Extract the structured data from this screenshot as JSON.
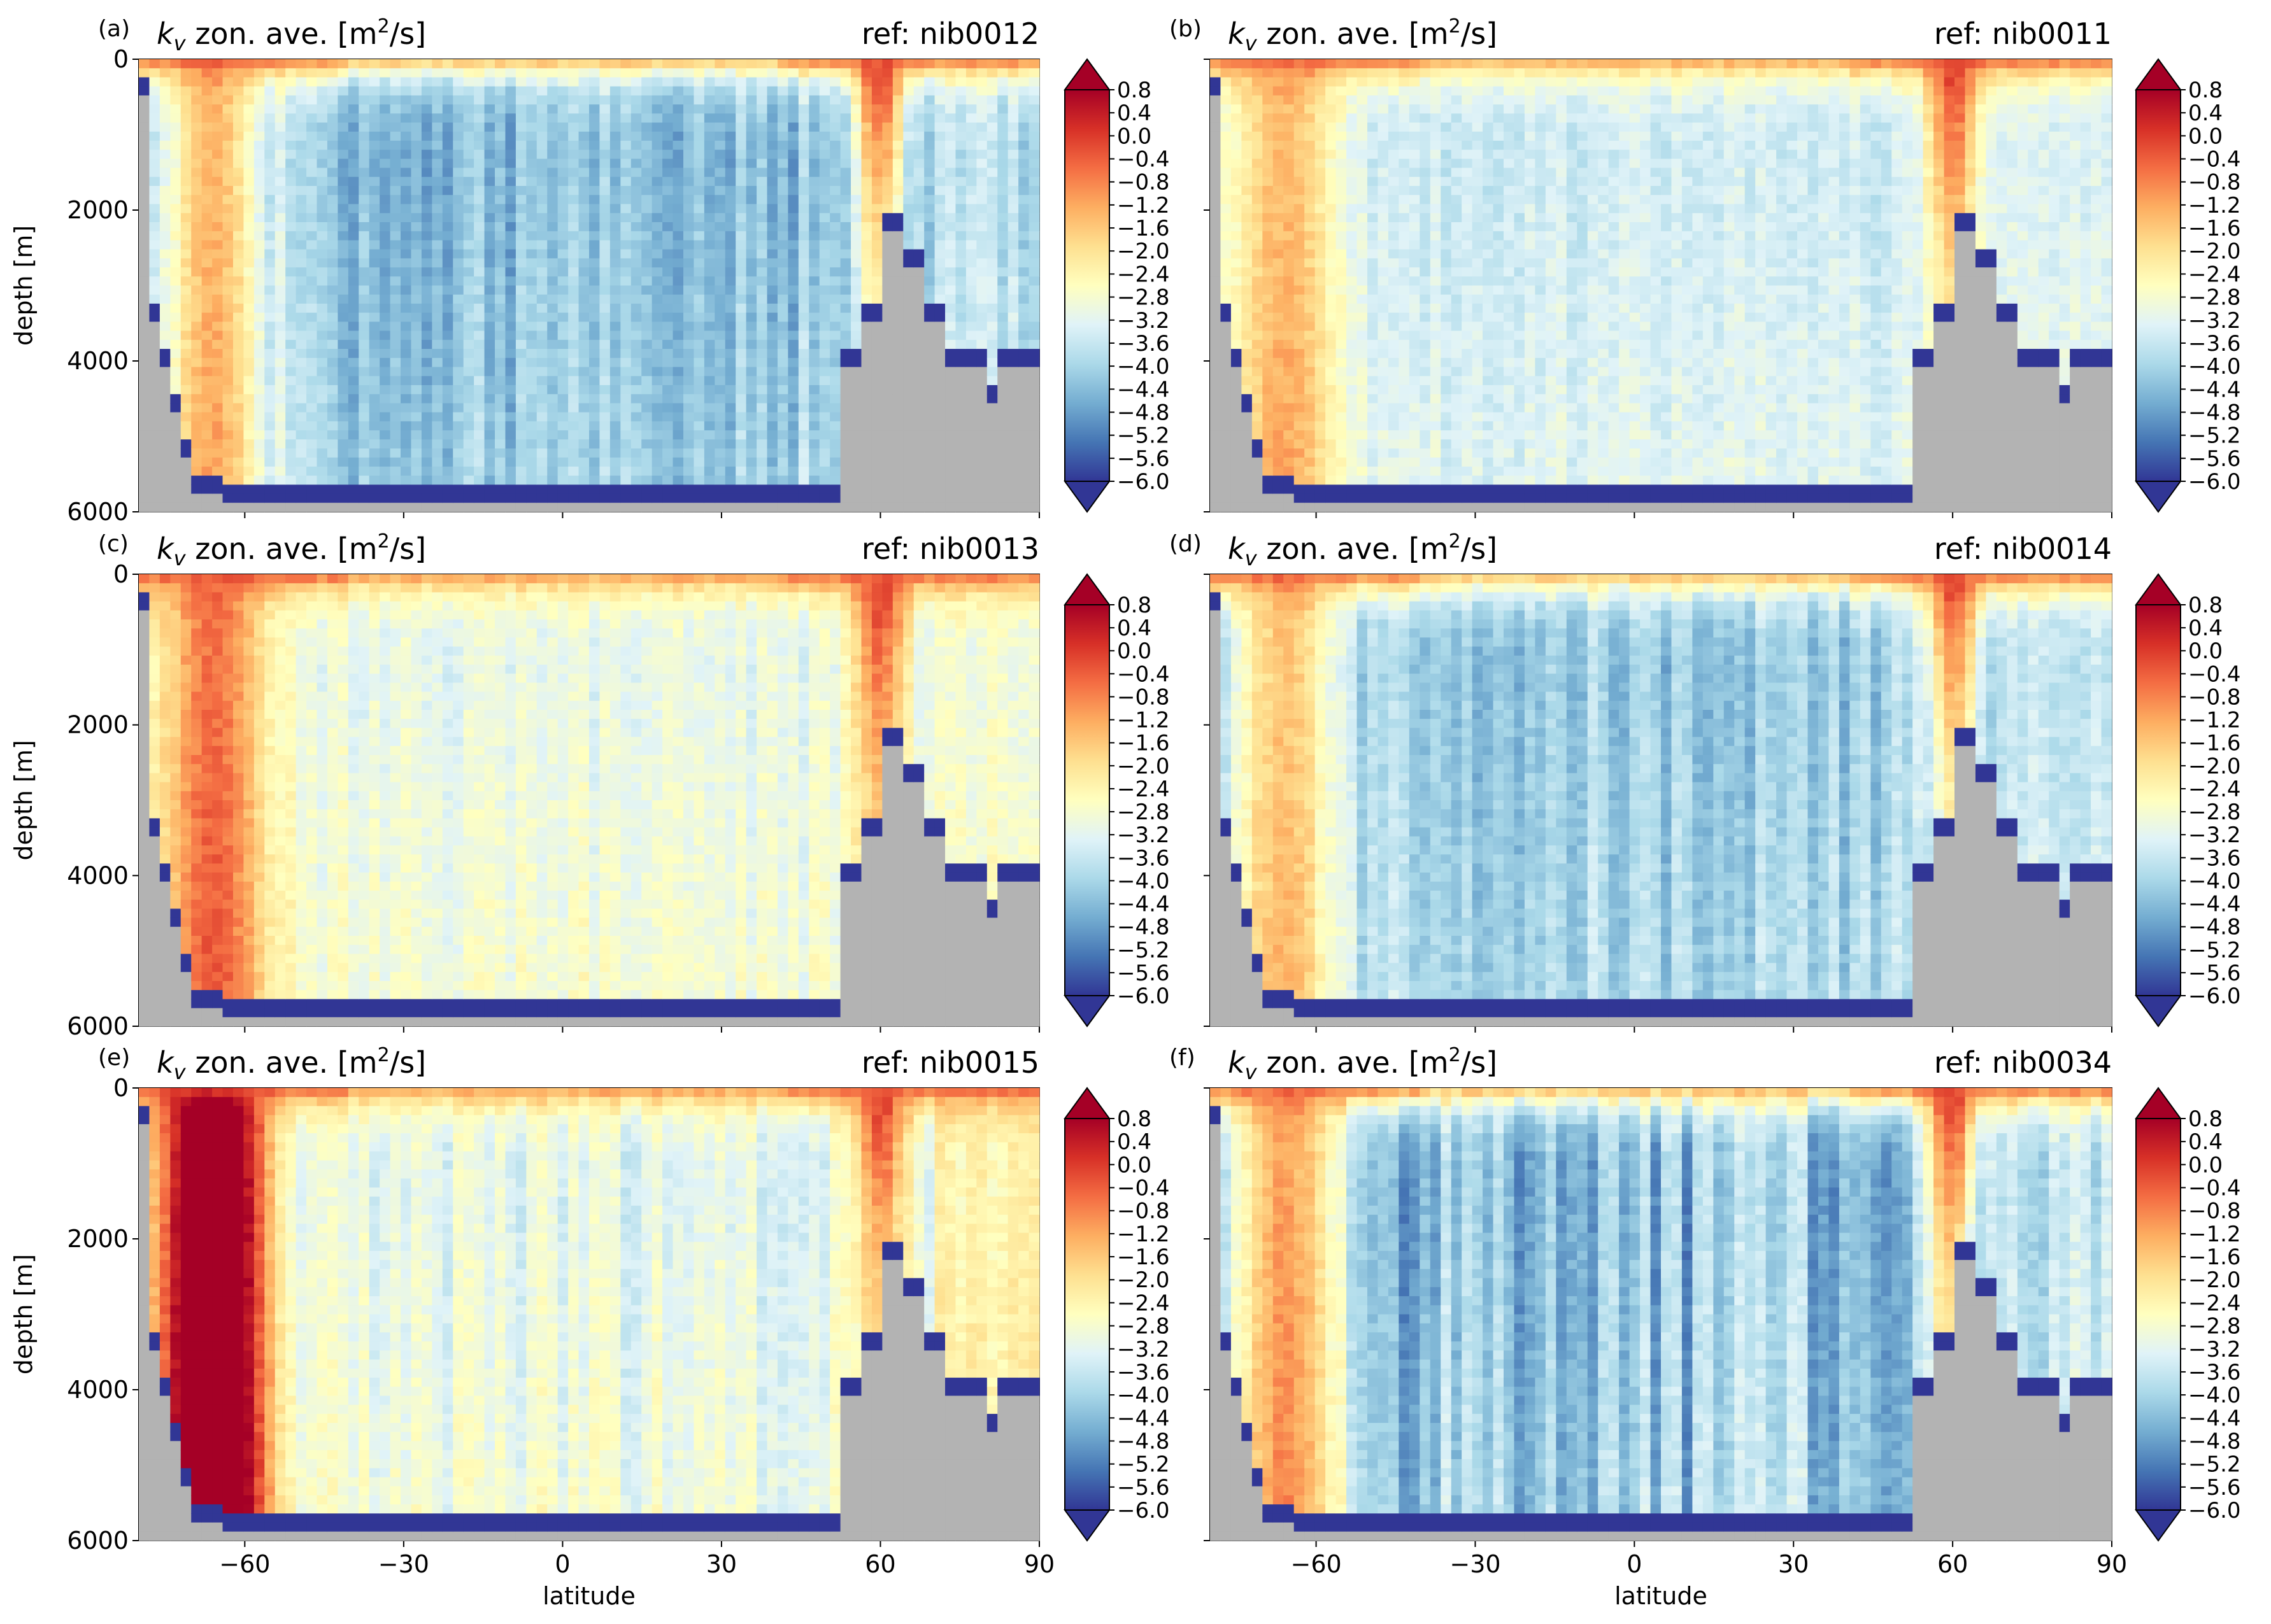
{
  "figure": {
    "x_axis_label": "latitude",
    "y_axis_label": "depth [m]"
  },
  "chart_data": [
    {
      "panel": "(a)",
      "title_var": "k",
      "title_sub": "v",
      "title_text": " zon. ave. [m",
      "title_sup": "2",
      "title_end": "/s]",
      "ref": "ref: nib0012"
    },
    {
      "panel": "(b)",
      "title_var": "k",
      "title_sub": "v",
      "title_text": " zon. ave. [m",
      "title_sup": "2",
      "title_end": "/s]",
      "ref": "ref: nib0011"
    },
    {
      "panel": "(c)",
      "title_var": "k",
      "title_sub": "v",
      "title_text": " zon. ave. [m",
      "title_sup": "2",
      "title_end": "/s]",
      "ref": "ref: nib0013"
    },
    {
      "panel": "(d)",
      "title_var": "k",
      "title_sub": "v",
      "title_text": " zon. ave. [m",
      "title_sup": "2",
      "title_end": "/s]",
      "ref": "ref: nib0014"
    },
    {
      "panel": "(e)",
      "title_var": "k",
      "title_sub": "v",
      "title_text": " zon. ave. [m",
      "title_sup": "2",
      "title_end": "/s]",
      "ref": "ref: nib0015"
    },
    {
      "panel": "(f)",
      "title_var": "k",
      "title_sub": "v",
      "title_text": " zon. ave. [m",
      "title_sup": "2",
      "title_end": "/s]",
      "ref": "ref: nib0034"
    }
  ],
  "shared": {
    "type": "heatmap",
    "xlim": [
      -80,
      90
    ],
    "ylim": [
      6000,
      0
    ],
    "x_ticks": [
      -60,
      -30,
      0,
      30,
      60,
      90
    ],
    "x_tick_labels": [
      "−60",
      "−30",
      "0",
      "30",
      "60",
      "90"
    ],
    "y_ticks": [
      0,
      2000,
      4000,
      6000
    ],
    "y_tick_labels": [
      "0",
      "2000",
      "4000",
      "6000"
    ],
    "colorbar": {
      "min": -6.0,
      "max": 0.8,
      "extend": "both",
      "tick_values": [
        0.8,
        0.4,
        0.0,
        -0.4,
        -0.8,
        -1.2,
        -1.6,
        -2.0,
        -2.4,
        -2.8,
        -3.2,
        -3.6,
        -4.0,
        -4.4,
        -4.8,
        -5.2,
        -5.6,
        -6.0
      ],
      "tick_labels": [
        "0.8",
        "0.4",
        "0.0",
        "−0.4",
        "−0.8",
        "−1.2",
        "−1.6",
        "−2.0",
        "−2.4",
        "−2.8",
        "−3.2",
        "−3.6",
        "−4.0",
        "−4.4",
        "−4.8",
        "−5.2",
        "−5.6",
        "−6.0"
      ],
      "colormap": [
        "#313695",
        "#4575b4",
        "#74add1",
        "#abd9e9",
        "#e0f3f8",
        "#ffffbf",
        "#fee090",
        "#fdae61",
        "#f46d43",
        "#d73027",
        "#a50026"
      ],
      "over_color": "#a50026",
      "under_color": "#313695"
    },
    "land_color": "#b3b3b3"
  }
}
